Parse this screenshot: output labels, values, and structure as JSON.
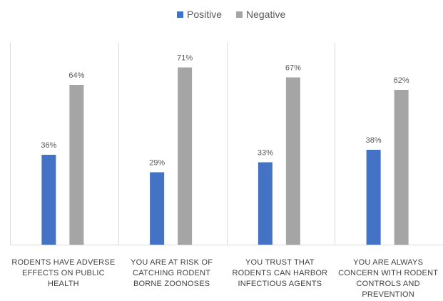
{
  "chart_data": {
    "type": "bar",
    "categories": [
      [
        "RODENTS HAVE ADVERSE",
        "EFFECTS ON PUBLIC",
        "HEALTH"
      ],
      [
        "YOU ARE AT RISK OF",
        "CATCHING RODENT",
        "BORNE ZOONOSES"
      ],
      [
        "YOU TRUST THAT",
        "RODENTS CAN HARBOR",
        "INFECTIOUS AGENTS"
      ],
      [
        "YOU ARE ALWAYS",
        "CONCERN WITH RODENT",
        "CONTROLS AND",
        "PREVENTION"
      ]
    ],
    "series": [
      {
        "name": "Positive",
        "color": "#4472c4",
        "values": [
          36,
          29,
          33,
          38
        ],
        "labels": [
          "36%",
          "29%",
          "33%",
          "38%"
        ]
      },
      {
        "name": "Negative",
        "color": "#a5a5a5",
        "values": [
          64,
          71,
          67,
          62
        ],
        "labels": [
          "64%",
          "71%",
          "67%",
          "62%"
        ]
      }
    ],
    "ylim": [
      0,
      80
    ],
    "legend": "top-center",
    "grid": false
  }
}
